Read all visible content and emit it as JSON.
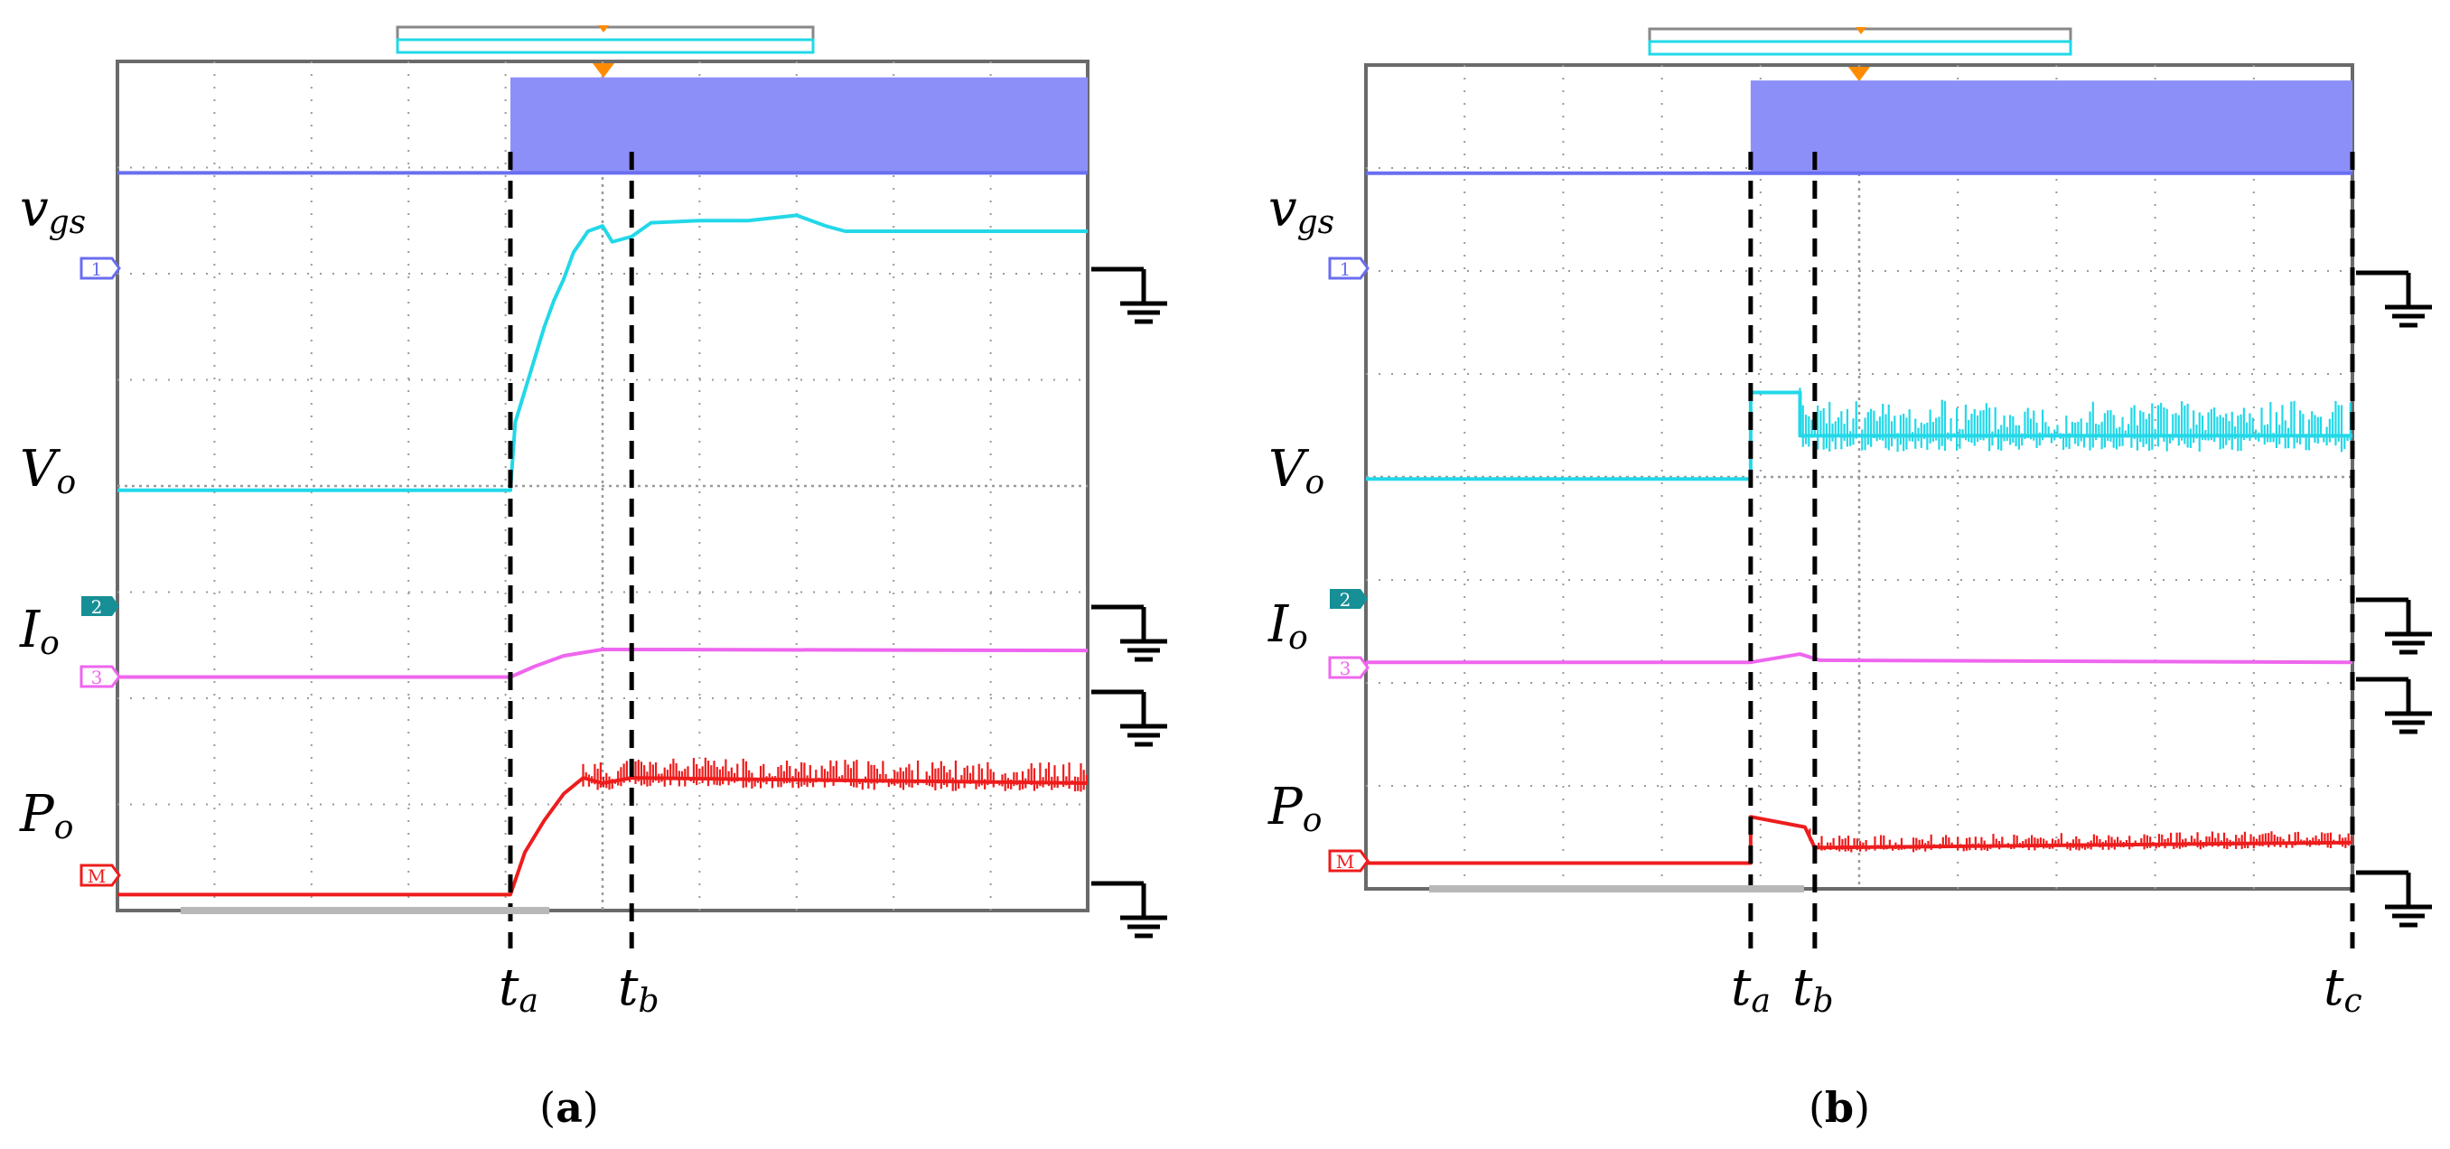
{
  "panels": [
    {
      "id": "a",
      "caption_letter": "a",
      "signal_labels": {
        "vgs": {
          "main": "v",
          "sub": "gs"
        },
        "vo": {
          "main": "V",
          "sub": "o"
        },
        "io": {
          "main": "I",
          "sub": "o"
        },
        "po": {
          "main": "P",
          "sub": "o"
        }
      },
      "channel_markers": [
        "1",
        "2",
        "3",
        "M"
      ],
      "time_markers": [
        {
          "main": "t",
          "sub": "a"
        },
        {
          "main": "t",
          "sub": "b"
        }
      ]
    },
    {
      "id": "b",
      "caption_letter": "b",
      "signal_labels": {
        "vgs": {
          "main": "v",
          "sub": "gs"
        },
        "vo": {
          "main": "V",
          "sub": "o"
        },
        "io": {
          "main": "I",
          "sub": "o"
        },
        "po": {
          "main": "P",
          "sub": "o"
        }
      },
      "channel_markers": [
        "1",
        "2",
        "3",
        "M"
      ],
      "time_markers": [
        {
          "main": "t",
          "sub": "a"
        },
        {
          "main": "t",
          "sub": "b"
        },
        {
          "main": "t",
          "sub": "c"
        }
      ]
    }
  ],
  "colors": {
    "vgs": "#6a6ef0",
    "vgs_fill": "#8c8ff8",
    "vo": "#22d8e8",
    "io": "#ee66ee",
    "po": "#ee1c1c",
    "grid": "#9a9a9a",
    "frame": "#6a6a6a",
    "trigger": "#ff8c00",
    "ch2_marker": "#178f96"
  },
  "chart_data": [
    {
      "type": "line",
      "panel": "a",
      "x_divisions": 10,
      "y_divisions": 8,
      "grid": true,
      "time_markers_div": {
        "ta": 4.05,
        "tb": 5.3
      },
      "series": [
        {
          "name": "vgs",
          "x": [
            0,
            4.05,
            4.05,
            10
          ],
          "y": [
            6.95,
            6.95,
            6.95,
            6.95
          ],
          "switching_band": {
            "from_div": 4.05,
            "to_div": 10,
            "low": 6.95,
            "high": 7.85
          }
        },
        {
          "name": "Vo",
          "x": [
            0,
            4.05,
            4.1,
            4.3,
            4.4,
            4.5,
            4.6,
            4.7,
            4.85,
            5.0,
            5.1,
            5.3,
            5.5,
            6.0,
            6.5,
            7.0,
            7.3,
            7.5,
            10
          ],
          "y": [
            3.96,
            3.96,
            4.6,
            5.2,
            5.5,
            5.75,
            5.95,
            6.2,
            6.4,
            6.45,
            6.3,
            6.35,
            6.48,
            6.5,
            6.5,
            6.55,
            6.45,
            6.4,
            6.4
          ]
        },
        {
          "name": "Io",
          "x": [
            0,
            4.05,
            4.3,
            4.6,
            5.0,
            10
          ],
          "y": [
            2.2,
            2.2,
            2.3,
            2.4,
            2.46,
            2.45
          ]
        },
        {
          "name": "Po",
          "x": [
            0,
            4.05,
            4.2,
            4.4,
            4.6,
            4.8,
            5.0,
            5.3,
            10
          ],
          "y": [
            0.15,
            0.15,
            0.55,
            0.85,
            1.1,
            1.25,
            1.2,
            1.25,
            1.2
          ],
          "noise_after_div": 4.8,
          "noise_amplitude_div": 0.2
        }
      ]
    },
    {
      "type": "line",
      "panel": "b",
      "x_divisions": 10,
      "y_divisions": 8,
      "grid": true,
      "time_markers_div": {
        "ta": 3.9,
        "tb": 4.55,
        "tc": 10
      },
      "series": [
        {
          "name": "vgs",
          "x": [
            0,
            3.9,
            3.9,
            10
          ],
          "y": [
            6.95,
            6.95,
            6.95,
            6.95
          ],
          "switching_band": {
            "from_div": 3.9,
            "to_div": 10,
            "low": 6.95,
            "high": 7.85
          }
        },
        {
          "name": "Vo",
          "x": [
            0,
            3.9,
            3.9,
            4.4,
            4.4,
            10
          ],
          "y": [
            3.98,
            3.98,
            4.82,
            4.82,
            4.4,
            4.4
          ],
          "noise_after_div": 4.4,
          "noise_amplitude_div": 0.35
        },
        {
          "name": "Io",
          "x": [
            0,
            3.9,
            4.4,
            4.6,
            10
          ],
          "y": [
            2.2,
            2.2,
            2.28,
            2.22,
            2.2
          ]
        },
        {
          "name": "Po",
          "x": [
            0,
            3.9,
            3.9,
            4.45,
            4.55,
            10
          ],
          "y": [
            0.25,
            0.25,
            0.7,
            0.6,
            0.4,
            0.45
          ],
          "noise_after_div": 4.5,
          "noise_amplitude_div": 0.12
        }
      ]
    }
  ]
}
